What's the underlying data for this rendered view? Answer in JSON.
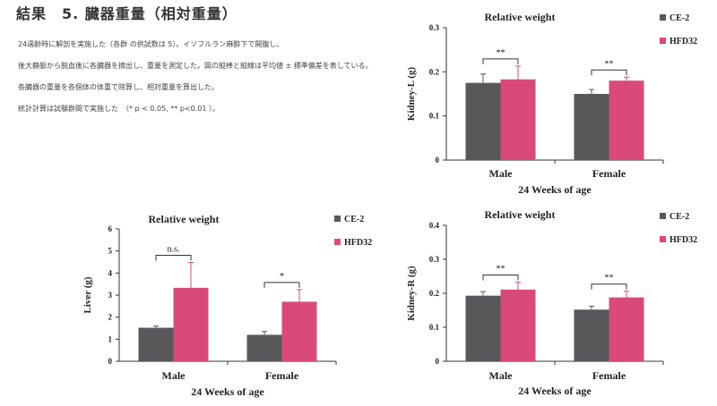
{
  "heading": "結果　5. 臓器重量（相対重量）",
  "notes": [
    "24週齢時に解剖を実施した（各群 の供試数は 5）。イソフルラン麻酔下で開腹し、",
    "後大静脈から脱血後に各臓器を摘出し、重量を測定した。図の縦棒と縦線は平均値 ± 標準偏差を表している。",
    "各臓器の重量を各個体の体重で除算し、相対重量を算出した。",
    "統計計算は試験群間で実施した　（*  p < 0.05, ** p<0.01 ）。"
  ],
  "chart_data": [
    {
      "type": "bar",
      "title": "Relative weight",
      "ylabel": "Kidney-L (g)",
      "xlabel": "24 Weeks of age",
      "categories": [
        "Male",
        "Female"
      ],
      "ylim": [
        0,
        0.3
      ],
      "yticks": [
        "0",
        "0.1",
        "0.2",
        "0.3"
      ],
      "series": [
        {
          "name": "CE-2",
          "color": "#58585a",
          "values": [
            0.175,
            0.15
          ],
          "errors": [
            0.02,
            0.01
          ]
        },
        {
          "name": "HFD32",
          "color": "#d94a78",
          "values": [
            0.183,
            0.18
          ],
          "errors": [
            0.03,
            0.008
          ]
        }
      ],
      "significance": [
        "**",
        "**"
      ],
      "legend": "top-right"
    },
    {
      "type": "bar",
      "title": "Relative weight",
      "ylabel": "Liver (g)",
      "xlabel": "24 Weeks of age",
      "categories": [
        "Male",
        "Female"
      ],
      "ylim": [
        0,
        6
      ],
      "yticks": [
        "0",
        "1",
        "2",
        "3",
        "4",
        "5",
        "6"
      ],
      "series": [
        {
          "name": "CE-2",
          "color": "#58585a",
          "values": [
            1.52,
            1.2
          ],
          "errors": [
            0.08,
            0.15
          ]
        },
        {
          "name": "HFD32",
          "color": "#d94a78",
          "values": [
            3.33,
            2.7
          ],
          "errors": [
            1.15,
            0.55
          ]
        }
      ],
      "significance": [
        "n.s.",
        "*"
      ],
      "legend": "top-right"
    },
    {
      "type": "bar",
      "title": "Relative weight",
      "ylabel": "Kidney-R (g)",
      "xlabel": "24 Weeks of age",
      "categories": [
        "Male",
        "Female"
      ],
      "ylim": [
        0,
        0.4
      ],
      "yticks": [
        "0",
        "0.1",
        "0.2",
        "0.3",
        "0.4"
      ],
      "series": [
        {
          "name": "CE-2",
          "color": "#58585a",
          "values": [
            0.193,
            0.152
          ],
          "errors": [
            0.012,
            0.01
          ]
        },
        {
          "name": "HFD32",
          "color": "#d94a78",
          "values": [
            0.211,
            0.188
          ],
          "errors": [
            0.022,
            0.018
          ]
        }
      ],
      "significance": [
        "**",
        "**"
      ],
      "legend": "top-right"
    }
  ]
}
